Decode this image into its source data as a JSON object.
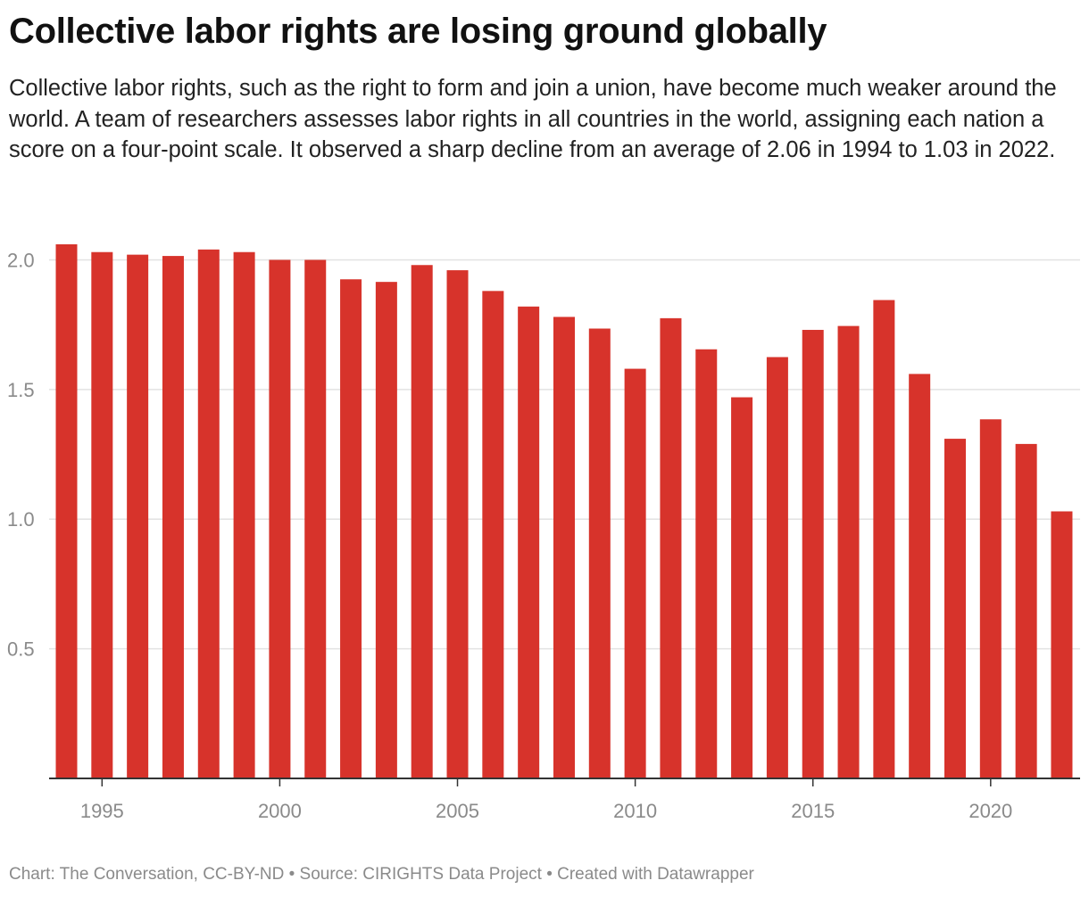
{
  "header": {
    "title": "Collective labor rights are losing ground globally",
    "subtitle": "Collective labor rights, such as the right to form and join a union, have become much weaker around the world. A team of researchers assesses labor rights in all countries in the world, assigning each nation a score on a four-point scale. It observed a sharp decline from an average of 2.06 in 1994 to 1.03 in 2022."
  },
  "footer": {
    "credit": "Chart: The Conversation, CC-BY-ND • Source: CIRIGHTS Data Project • Created with Datawrapper"
  },
  "colors": {
    "bar": "#d7332b",
    "grid": "#e2e2e2",
    "axis": "#333333",
    "tick_label": "#8a8a8a"
  },
  "chart_data": {
    "type": "bar",
    "title": "Collective labor rights are losing ground globally",
    "xlabel": "",
    "ylabel": "",
    "ylim": [
      0,
      2.06
    ],
    "y_ticks": [
      0.5,
      1.0,
      1.5,
      2.0
    ],
    "y_tick_labels": [
      "0.5",
      "1.0",
      "1.5",
      "2.0"
    ],
    "x_ticks": [
      1995,
      2000,
      2005,
      2010,
      2015,
      2020
    ],
    "x_tick_labels": [
      "1995",
      "2000",
      "2005",
      "2010",
      "2015",
      "2020"
    ],
    "grid": true,
    "categories": [
      1994,
      1995,
      1996,
      1997,
      1998,
      1999,
      2000,
      2001,
      2002,
      2003,
      2004,
      2005,
      2006,
      2007,
      2008,
      2009,
      2010,
      2011,
      2012,
      2013,
      2014,
      2015,
      2016,
      2017,
      2018,
      2019,
      2020,
      2021,
      2022
    ],
    "values": [
      2.06,
      2.03,
      2.02,
      2.015,
      2.04,
      2.03,
      2.0,
      2.0,
      1.925,
      1.915,
      1.98,
      1.96,
      1.88,
      1.82,
      1.78,
      1.735,
      1.58,
      1.775,
      1.655,
      1.47,
      1.625,
      1.73,
      1.745,
      1.845,
      1.56,
      1.31,
      1.385,
      1.29,
      1.03
    ]
  }
}
